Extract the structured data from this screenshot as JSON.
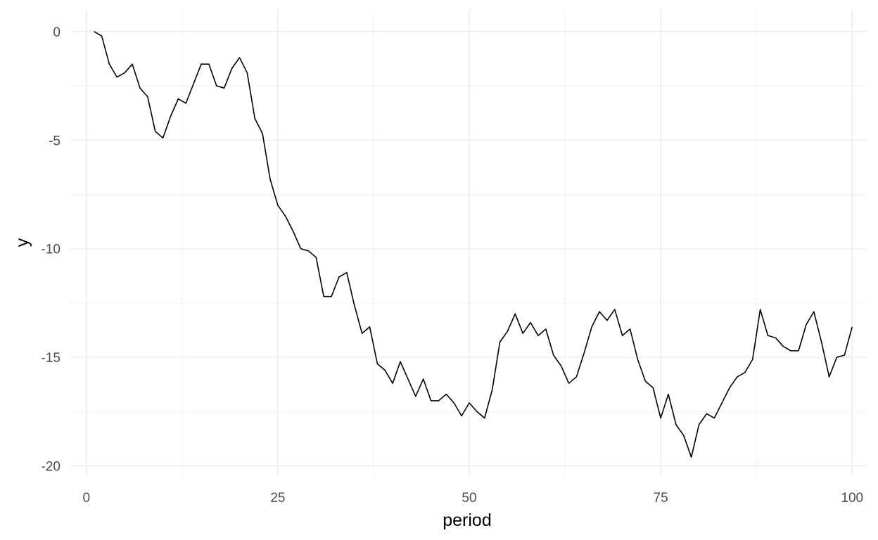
{
  "chart_data": {
    "type": "line",
    "xlabel": "period",
    "ylabel": "y",
    "xlim": [
      -2,
      102
    ],
    "ylim": [
      -20.5,
      1
    ],
    "x_ticks": [
      0,
      25,
      50,
      75,
      100
    ],
    "y_ticks": [
      0,
      -5,
      -10,
      -15,
      -20
    ],
    "x_tick_labels": [
      "0",
      "25",
      "50",
      "75",
      "100"
    ],
    "y_tick_labels": [
      "0",
      "-5",
      "-10",
      "-15",
      "-20"
    ],
    "grid": true,
    "series": [
      {
        "color": "#000000",
        "x": [
          1,
          2,
          3,
          4,
          5,
          6,
          7,
          8,
          9,
          10,
          11,
          12,
          13,
          14,
          15,
          16,
          17,
          18,
          19,
          20,
          21,
          22,
          23,
          24,
          25,
          26,
          27,
          28,
          29,
          30,
          31,
          32,
          33,
          34,
          35,
          36,
          37,
          38,
          39,
          40,
          41,
          42,
          43,
          44,
          45,
          46,
          47,
          48,
          49,
          50,
          51,
          52,
          53,
          54,
          55,
          56,
          57,
          58,
          59,
          60,
          61,
          62,
          63,
          64,
          65,
          66,
          67,
          68,
          69,
          70,
          71,
          72,
          73,
          74,
          75,
          76,
          77,
          78,
          79,
          80,
          81,
          82,
          83,
          84,
          85,
          86,
          87,
          88,
          89,
          90,
          91,
          92,
          93,
          94,
          95,
          96,
          97,
          98,
          99,
          100
        ],
        "y": [
          0,
          -0.2,
          -1.5,
          -2.1,
          -1.9,
          -1.5,
          -2.6,
          -3.0,
          -4.6,
          -4.9,
          -3.9,
          -3.1,
          -3.3,
          -2.4,
          -1.5,
          -1.5,
          -2.5,
          -2.6,
          -1.7,
          -1.2,
          -1.9,
          -4.0,
          -4.7,
          -6.8,
          -8.0,
          -8.5,
          -9.2,
          -10.0,
          -10.1,
          -10.4,
          -12.2,
          -12.2,
          -11.3,
          -11.1,
          -12.6,
          -13.9,
          -13.6,
          -15.3,
          -15.6,
          -16.2,
          -15.2,
          -16.0,
          -16.8,
          -16.0,
          -17.0,
          -17.0,
          -16.7,
          -17.1,
          -17.7,
          -17.1,
          -17.5,
          -17.8,
          -16.5,
          -14.3,
          -13.8,
          -13.0,
          -13.9,
          -13.4,
          -14.0,
          -13.7,
          -14.9,
          -15.4,
          -16.2,
          -15.9,
          -14.8,
          -13.6,
          -12.9,
          -13.3,
          -12.8,
          -14.0,
          -13.7,
          -15.1,
          -16.1,
          -16.4,
          -17.8,
          -16.7,
          -18.1,
          -18.6,
          -19.6,
          -18.1,
          -17.6,
          -17.8,
          -17.1,
          -16.4,
          -15.9,
          -15.7,
          -15.1,
          -12.8,
          -14.0,
          -14.1,
          -14.5,
          -14.7,
          -14.7,
          -13.5,
          -12.9,
          -14.3,
          -15.9,
          -15.0,
          -14.9,
          -13.6
        ]
      }
    ]
  }
}
